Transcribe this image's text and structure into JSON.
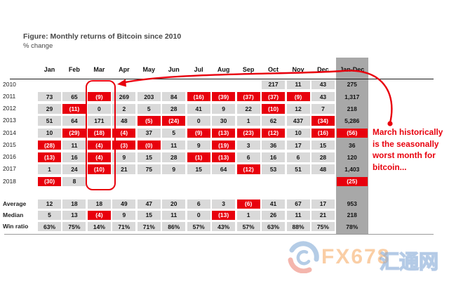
{
  "title": "Figure: Monthly returns of Bitcoin since 2010",
  "subtitle": "% change",
  "annotation": {
    "text": "March historically is the seasonally worst month for bitcoin...",
    "arrow": "points-from-text-to-march-column"
  },
  "watermark": {
    "brand": "FX678",
    "cn": "汇通网",
    "logo_icon": "swirl-globe-icon"
  },
  "colors": {
    "negative_red": "#e8000d",
    "cell_gray": "#d9d9d9",
    "total_band_gray": "#a8a8a8",
    "annotation_red": "#e8000d",
    "title_gray": "#474747"
  },
  "chart_data": {
    "type": "table",
    "title": "Figure: Monthly returns of Bitcoin since 2010",
    "subtitle": "% change",
    "note": "negative values shown in parentheses on red cells",
    "columns": [
      "Jan",
      "Feb",
      "Mar",
      "Apr",
      "May",
      "Jun",
      "Jul",
      "Aug",
      "Sep",
      "Oct",
      "Nov",
      "Dec",
      "Jan-Dec"
    ],
    "rows": [
      {
        "label": "2010",
        "cells": [
          "",
          "",
          "",
          "",
          "",
          "",
          "",
          "",
          "",
          "217",
          "11",
          "43",
          "275"
        ]
      },
      {
        "label": "2011",
        "cells": [
          "73",
          "65",
          "(9)",
          "269",
          "203",
          "84",
          "(16)",
          "(39)",
          "(37)",
          "(37)",
          "(9)",
          "43",
          "1,317"
        ]
      },
      {
        "label": "2012",
        "cells": [
          "29",
          "(11)",
          "0",
          "2",
          "5",
          "28",
          "41",
          "9",
          "22",
          "(10)",
          "12",
          "7",
          "218"
        ]
      },
      {
        "label": "2013",
        "cells": [
          "51",
          "64",
          "171",
          "48",
          "(5)",
          "(24)",
          "0",
          "30",
          "1",
          "62",
          "437",
          "(34)",
          "5,286"
        ]
      },
      {
        "label": "2014",
        "cells": [
          "10",
          "(29)",
          "(18)",
          "(4)",
          "37",
          "5",
          "(9)",
          "(13)",
          "(23)",
          "(12)",
          "10",
          "(16)",
          "(56)"
        ]
      },
      {
        "label": "2015",
        "cells": [
          "(28)",
          "11",
          "(4)",
          "(3)",
          "(0)",
          "11",
          "9",
          "(19)",
          "3",
          "36",
          "17",
          "15",
          "36"
        ]
      },
      {
        "label": "2016",
        "cells": [
          "(13)",
          "16",
          "(4)",
          "9",
          "15",
          "28",
          "(1)",
          "(13)",
          "6",
          "16",
          "6",
          "28",
          "120"
        ]
      },
      {
        "label": "2017",
        "cells": [
          "1",
          "24",
          "(10)",
          "21",
          "75",
          "9",
          "15",
          "64",
          "(12)",
          "53",
          "51",
          "48",
          "1,403"
        ]
      },
      {
        "label": "2018",
        "cells": [
          "(30)",
          "8",
          "",
          "",
          "",
          "",
          "",
          "",
          "",
          "",
          "",
          "",
          "(25)"
        ]
      }
    ],
    "summary_rows": [
      {
        "label": "Average",
        "cells": [
          "12",
          "18",
          "18",
          "49",
          "47",
          "20",
          "6",
          "3",
          "(6)",
          "41",
          "67",
          "17",
          "953"
        ]
      },
      {
        "label": "Median",
        "cells": [
          "5",
          "13",
          "(4)",
          "9",
          "15",
          "11",
          "0",
          "(13)",
          "1",
          "26",
          "11",
          "21",
          "218"
        ]
      },
      {
        "label": "Win ratio",
        "cells": [
          "63%",
          "75%",
          "14%",
          "71%",
          "71%",
          "86%",
          "57%",
          "43%",
          "57%",
          "63%",
          "88%",
          "75%",
          "78%"
        ]
      }
    ],
    "highlight": {
      "column": "Mar",
      "style": "red-rounded-outline"
    }
  }
}
